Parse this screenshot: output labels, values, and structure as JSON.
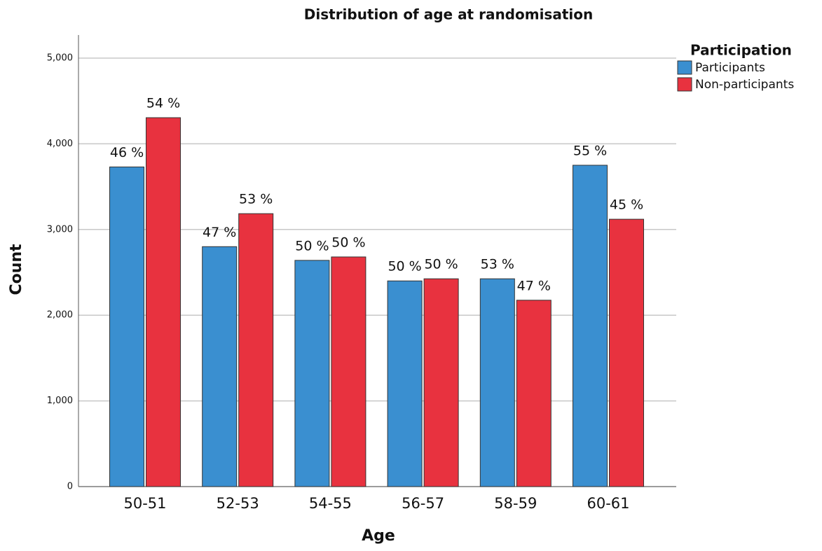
{
  "chart_data": {
    "type": "bar",
    "title": "Distribution of age at randomisation",
    "x_label": "Age",
    "y_label": "Count",
    "legend_title": "Participation",
    "legend": "top-right",
    "grid": true,
    "categories": [
      "50-51",
      "52-53",
      "54-55",
      "56-57",
      "58-59",
      "60-61"
    ],
    "series": [
      {
        "name": "Participants",
        "color": "#3a8fd0",
        "values": [
          3730,
          2800,
          2640,
          2400,
          2425,
          3750
        ],
        "labels": [
          "46 %",
          "47 %",
          "50 %",
          "50 %",
          "53 %",
          "55 %"
        ]
      },
      {
        "name": "Non-participants",
        "color": "#e8323f",
        "values": [
          4305,
          3185,
          2680,
          2425,
          2175,
          3120
        ],
        "labels": [
          "54 %",
          "53 %",
          "50 %",
          "50 %",
          "47 %",
          "45 %"
        ]
      }
    ],
    "ylim": [
      0,
      5000
    ],
    "yticks": [
      0,
      {
        "value": 1000,
        "label": "1,000"
      },
      {
        "value": 2000,
        "label": "2,000"
      },
      {
        "value": 3000,
        "label": "3,000"
      },
      {
        "value": 4000,
        "label": "4,000"
      },
      {
        "value": 5000,
        "label": "5,000"
      }
    ]
  }
}
